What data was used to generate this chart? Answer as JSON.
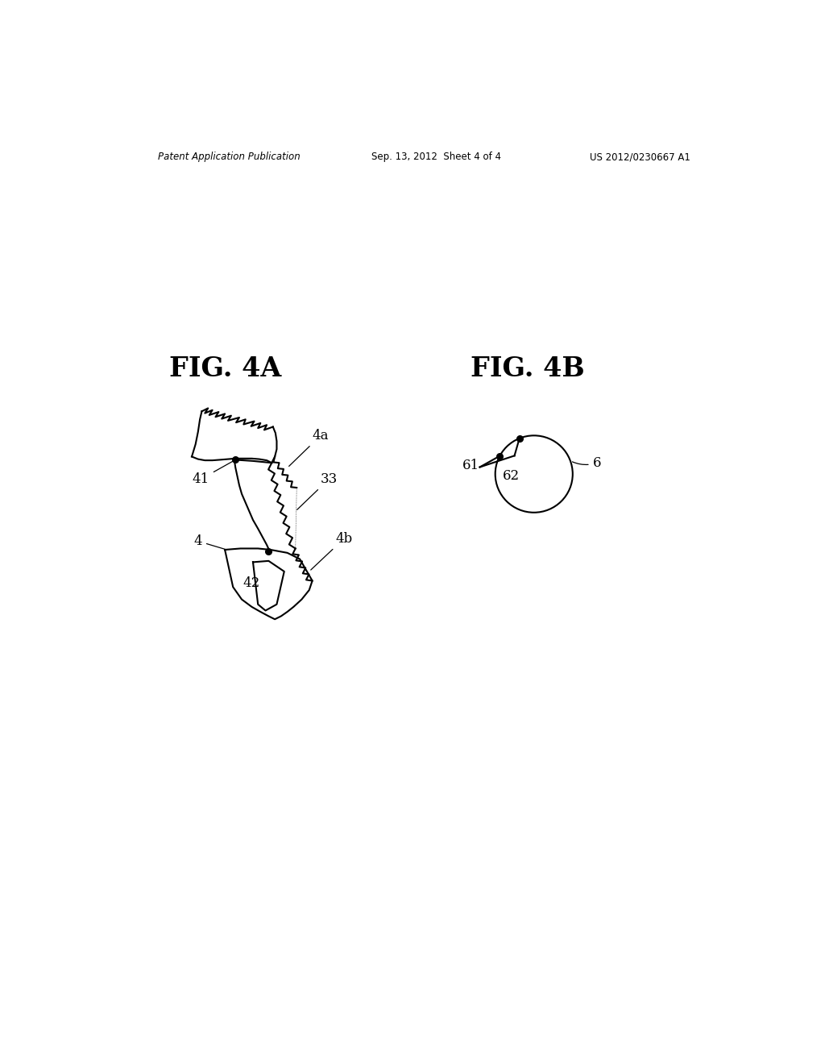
{
  "background_color": "#ffffff",
  "header_left": "Patent Application Publication",
  "header_center": "Sep. 13, 2012  Sheet 4 of 4",
  "header_right": "US 2012/0230667 A1",
  "fig4a_title": "FIG. 4A",
  "fig4b_title": "FIG. 4B",
  "label_color": "#000000",
  "line_color": "#000000",
  "line_width": 1.5
}
